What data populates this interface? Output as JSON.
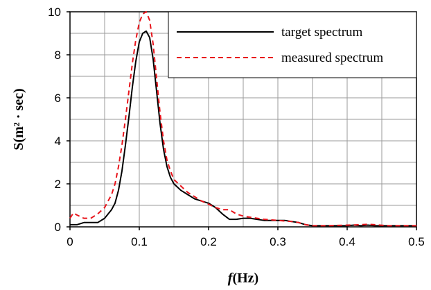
{
  "chart_data": {
    "type": "line",
    "xlabel": {
      "italic": "f",
      "rest": "(Hz)"
    },
    "ylabel": "S(m² · sec)",
    "xlim": [
      0,
      0.5
    ],
    "ylim": [
      0,
      10
    ],
    "xticks": [
      "0",
      "0.1",
      "0.2",
      "0.3",
      "0.4",
      "0.5"
    ],
    "yticks": [
      "0",
      "2",
      "4",
      "6",
      "8",
      "10"
    ],
    "grid": true,
    "legend_position": "top-right",
    "series": [
      {
        "name": "target spectrum",
        "color": "#000000",
        "dash": "solid",
        "x": [
          0,
          0.01,
          0.02,
          0.03,
          0.04,
          0.05,
          0.06,
          0.065,
          0.07,
          0.075,
          0.08,
          0.085,
          0.09,
          0.095,
          0.1,
          0.105,
          0.11,
          0.115,
          0.12,
          0.125,
          0.13,
          0.135,
          0.14,
          0.145,
          0.15,
          0.16,
          0.17,
          0.18,
          0.19,
          0.2,
          0.21,
          0.22,
          0.23,
          0.24,
          0.25,
          0.26,
          0.27,
          0.28,
          0.29,
          0.3,
          0.31,
          0.32,
          0.33,
          0.34,
          0.35,
          0.36,
          0.38,
          0.4,
          0.41,
          0.42,
          0.43,
          0.44,
          0.46,
          0.48,
          0.5
        ],
        "y": [
          0.1,
          0.1,
          0.2,
          0.2,
          0.2,
          0.4,
          0.8,
          1.1,
          1.7,
          2.6,
          3.8,
          5.1,
          6.5,
          7.7,
          8.6,
          9.0,
          9.1,
          8.8,
          7.8,
          6.3,
          4.8,
          3.6,
          2.8,
          2.3,
          2.0,
          1.7,
          1.5,
          1.3,
          1.2,
          1.1,
          0.9,
          0.6,
          0.35,
          0.35,
          0.4,
          0.4,
          0.35,
          0.3,
          0.3,
          0.3,
          0.3,
          0.25,
          0.2,
          0.1,
          0.05,
          0.05,
          0.05,
          0.05,
          0.08,
          0.05,
          0.08,
          0.05,
          0.05,
          0.05,
          0.05
        ]
      },
      {
        "name": "measured spectrum",
        "color": "#e8141b",
        "dash": "dashed",
        "x": [
          0,
          0.005,
          0.01,
          0.02,
          0.03,
          0.04,
          0.05,
          0.06,
          0.065,
          0.07,
          0.075,
          0.08,
          0.085,
          0.09,
          0.095,
          0.1,
          0.105,
          0.11,
          0.115,
          0.12,
          0.125,
          0.13,
          0.135,
          0.14,
          0.145,
          0.15,
          0.16,
          0.17,
          0.18,
          0.19,
          0.2,
          0.21,
          0.22,
          0.23,
          0.24,
          0.25,
          0.26,
          0.28,
          0.3,
          0.32,
          0.33,
          0.34,
          0.35,
          0.37,
          0.4,
          0.42,
          0.43,
          0.44,
          0.46,
          0.48,
          0.5
        ],
        "y": [
          0.4,
          0.65,
          0.55,
          0.4,
          0.4,
          0.6,
          0.9,
          1.5,
          2.0,
          2.8,
          3.8,
          5.0,
          6.3,
          7.6,
          8.7,
          9.5,
          9.9,
          10.0,
          9.6,
          8.5,
          6.9,
          5.3,
          4.0,
          3.1,
          2.6,
          2.2,
          1.9,
          1.6,
          1.4,
          1.2,
          1.05,
          0.9,
          0.8,
          0.8,
          0.6,
          0.5,
          0.45,
          0.35,
          0.3,
          0.25,
          0.2,
          0.1,
          0.05,
          0.05,
          0.08,
          0.1,
          0.12,
          0.1,
          0.05,
          0.05,
          0.05
        ]
      }
    ]
  }
}
